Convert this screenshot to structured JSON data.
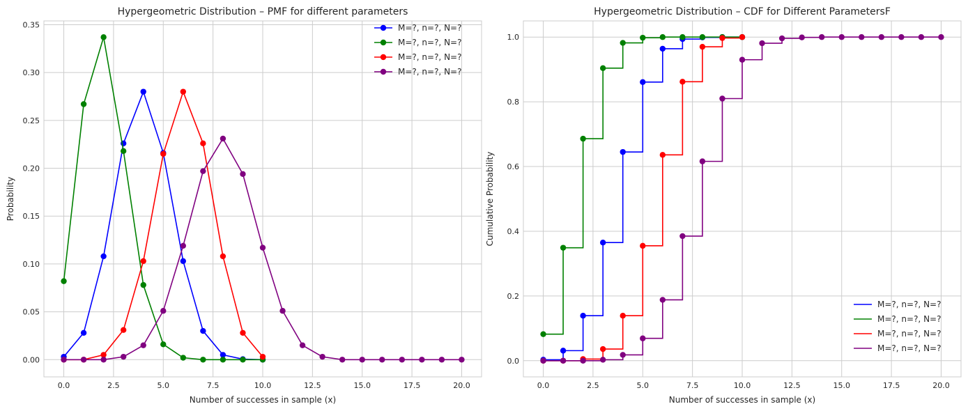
{
  "chart_data": [
    {
      "type": "line",
      "title": "Hypergeometric Distribution – PMF for different parameters",
      "xlabel": "Number of successes in sample (x)",
      "ylabel": "Probability",
      "xlim": [
        -1,
        21
      ],
      "ylim": [
        -0.018,
        0.354
      ],
      "xticks": [
        0,
        2.5,
        5,
        7.5,
        10,
        12.5,
        15,
        17.5,
        20
      ],
      "xtick_labels": [
        "0.0",
        "2.5",
        "5.0",
        "7.5",
        "10.0",
        "12.5",
        "15.0",
        "17.5",
        "20.0"
      ],
      "yticks": [
        0,
        0.05,
        0.1,
        0.15,
        0.2,
        0.25,
        0.3,
        0.35
      ],
      "ytick_labels": [
        "0.00",
        "0.05",
        "0.10",
        "0.15",
        "0.20",
        "0.25",
        "0.30",
        "0.35"
      ],
      "grid": true,
      "legend": "top-right",
      "series": [
        {
          "name": "M=?, n=?, N=?",
          "color": "#0000ff",
          "x": [
            0,
            1,
            2,
            3,
            4,
            5,
            6,
            7,
            8,
            9,
            10
          ],
          "values": [
            0.003,
            0.028,
            0.108,
            0.226,
            0.28,
            0.216,
            0.103,
            0.03,
            0.005,
            0.0005,
            0.0
          ]
        },
        {
          "name": "M=?, n=?, N=?",
          "color": "#008000",
          "x": [
            0,
            1,
            2,
            3,
            4,
            5,
            6,
            7,
            8,
            9,
            10
          ],
          "values": [
            0.082,
            0.267,
            0.337,
            0.218,
            0.078,
            0.016,
            0.002,
            0.0,
            0.0,
            0.0,
            0.0
          ]
        },
        {
          "name": "M=?, n=?, N=?",
          "color": "#ff0000",
          "x": [
            0,
            1,
            2,
            3,
            4,
            5,
            6,
            7,
            8,
            9,
            10
          ],
          "values": [
            0.0,
            0.0,
            0.005,
            0.031,
            0.103,
            0.215,
            0.28,
            0.226,
            0.108,
            0.028,
            0.003
          ]
        },
        {
          "name": "M=?, n=?, N=?",
          "color": "#800080",
          "x": [
            0,
            1,
            2,
            3,
            4,
            5,
            6,
            7,
            8,
            9,
            10,
            11,
            12,
            13,
            14,
            15,
            16,
            17,
            18,
            19,
            20
          ],
          "values": [
            0.0,
            0.0,
            0.0,
            0.003,
            0.015,
            0.051,
            0.119,
            0.197,
            0.231,
            0.194,
            0.117,
            0.051,
            0.015,
            0.003,
            0.0,
            0.0,
            0.0,
            0.0,
            0.0,
            0.0,
            0.0
          ]
        }
      ]
    },
    {
      "type": "line",
      "title": "Hypergeometric Distribution – CDF for Different ParametersF",
      "xlabel": "Number of successes in sample (x)",
      "ylabel": "Cumulative Probability",
      "xlim": [
        -1,
        21
      ],
      "ylim": [
        -0.05,
        1.05
      ],
      "xticks": [
        0,
        2.5,
        5,
        7.5,
        10,
        12.5,
        15,
        17.5,
        20
      ],
      "xtick_labels": [
        "0.0",
        "2.5",
        "5.0",
        "7.5",
        "10.0",
        "12.5",
        "15.0",
        "17.5",
        "20.0"
      ],
      "yticks": [
        0,
        0.2,
        0.4,
        0.6,
        0.8,
        1.0
      ],
      "ytick_labels": [
        "0.0",
        "0.2",
        "0.4",
        "0.6",
        "0.8",
        "1.0"
      ],
      "grid": true,
      "legend": "bottom-right",
      "step": "post",
      "series": [
        {
          "name": "M=?, n=?, N=?",
          "color": "#0000ff",
          "x": [
            0,
            1,
            2,
            3,
            4,
            5,
            6,
            7,
            8,
            9,
            10
          ],
          "values": [
            0.003,
            0.031,
            0.139,
            0.365,
            0.645,
            0.861,
            0.964,
            0.994,
            0.999,
            1.0,
            1.0
          ]
        },
        {
          "name": "M=?, n=?, N=?",
          "color": "#008000",
          "x": [
            0,
            1,
            2,
            3,
            4,
            5,
            6,
            7,
            8,
            9,
            10
          ],
          "values": [
            0.082,
            0.349,
            0.686,
            0.904,
            0.982,
            0.998,
            1.0,
            1.0,
            1.0,
            1.0,
            1.0
          ]
        },
        {
          "name": "M=?, n=?, N=?",
          "color": "#ff0000",
          "x": [
            0,
            1,
            2,
            3,
            4,
            5,
            6,
            7,
            8,
            9,
            10
          ],
          "values": [
            0.0,
            0.0,
            0.005,
            0.036,
            0.139,
            0.355,
            0.636,
            0.862,
            0.97,
            0.997,
            1.0
          ]
        },
        {
          "name": "M=?, n=?, N=?",
          "color": "#800080",
          "x": [
            0,
            1,
            2,
            3,
            4,
            5,
            6,
            7,
            8,
            9,
            10,
            11,
            12,
            13,
            14,
            15,
            16,
            17,
            18,
            19,
            20
          ],
          "values": [
            0.0,
            0.0,
            0.0,
            0.003,
            0.018,
            0.069,
            0.188,
            0.385,
            0.616,
            0.81,
            0.93,
            0.981,
            0.996,
            0.999,
            1.0,
            1.0,
            1.0,
            1.0,
            1.0,
            1.0,
            1.0
          ]
        }
      ]
    }
  ]
}
